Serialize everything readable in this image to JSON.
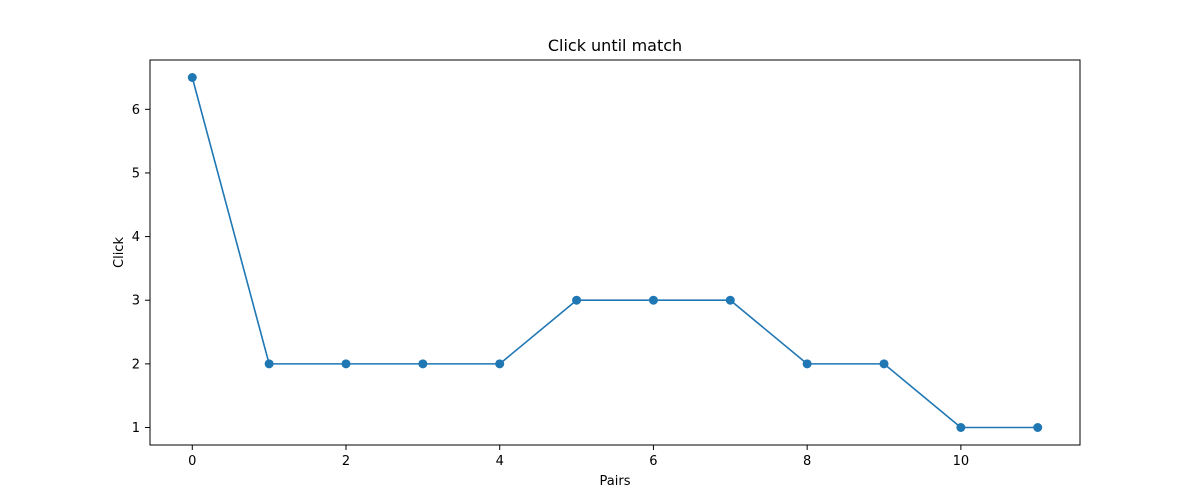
{
  "chart_data": {
    "type": "line",
    "title": "Click until match",
    "xlabel": "Pairs",
    "ylabel": "Click",
    "x": [
      0,
      1,
      2,
      3,
      4,
      5,
      6,
      7,
      8,
      9,
      10,
      11
    ],
    "series": [
      {
        "values": [
          6.5,
          2,
          2,
          2,
          2,
          3,
          3,
          3,
          2,
          2,
          1,
          1
        ],
        "color": "#1f77b4",
        "marker": "circle"
      }
    ],
    "xlim": [
      -0.55,
      11.55
    ],
    "ylim": [
      0.725,
      6.775
    ],
    "xticks": [
      0,
      2,
      4,
      6,
      8,
      10
    ],
    "yticks": [
      1,
      2,
      3,
      4,
      5,
      6
    ],
    "grid": false,
    "legend": "none"
  }
}
